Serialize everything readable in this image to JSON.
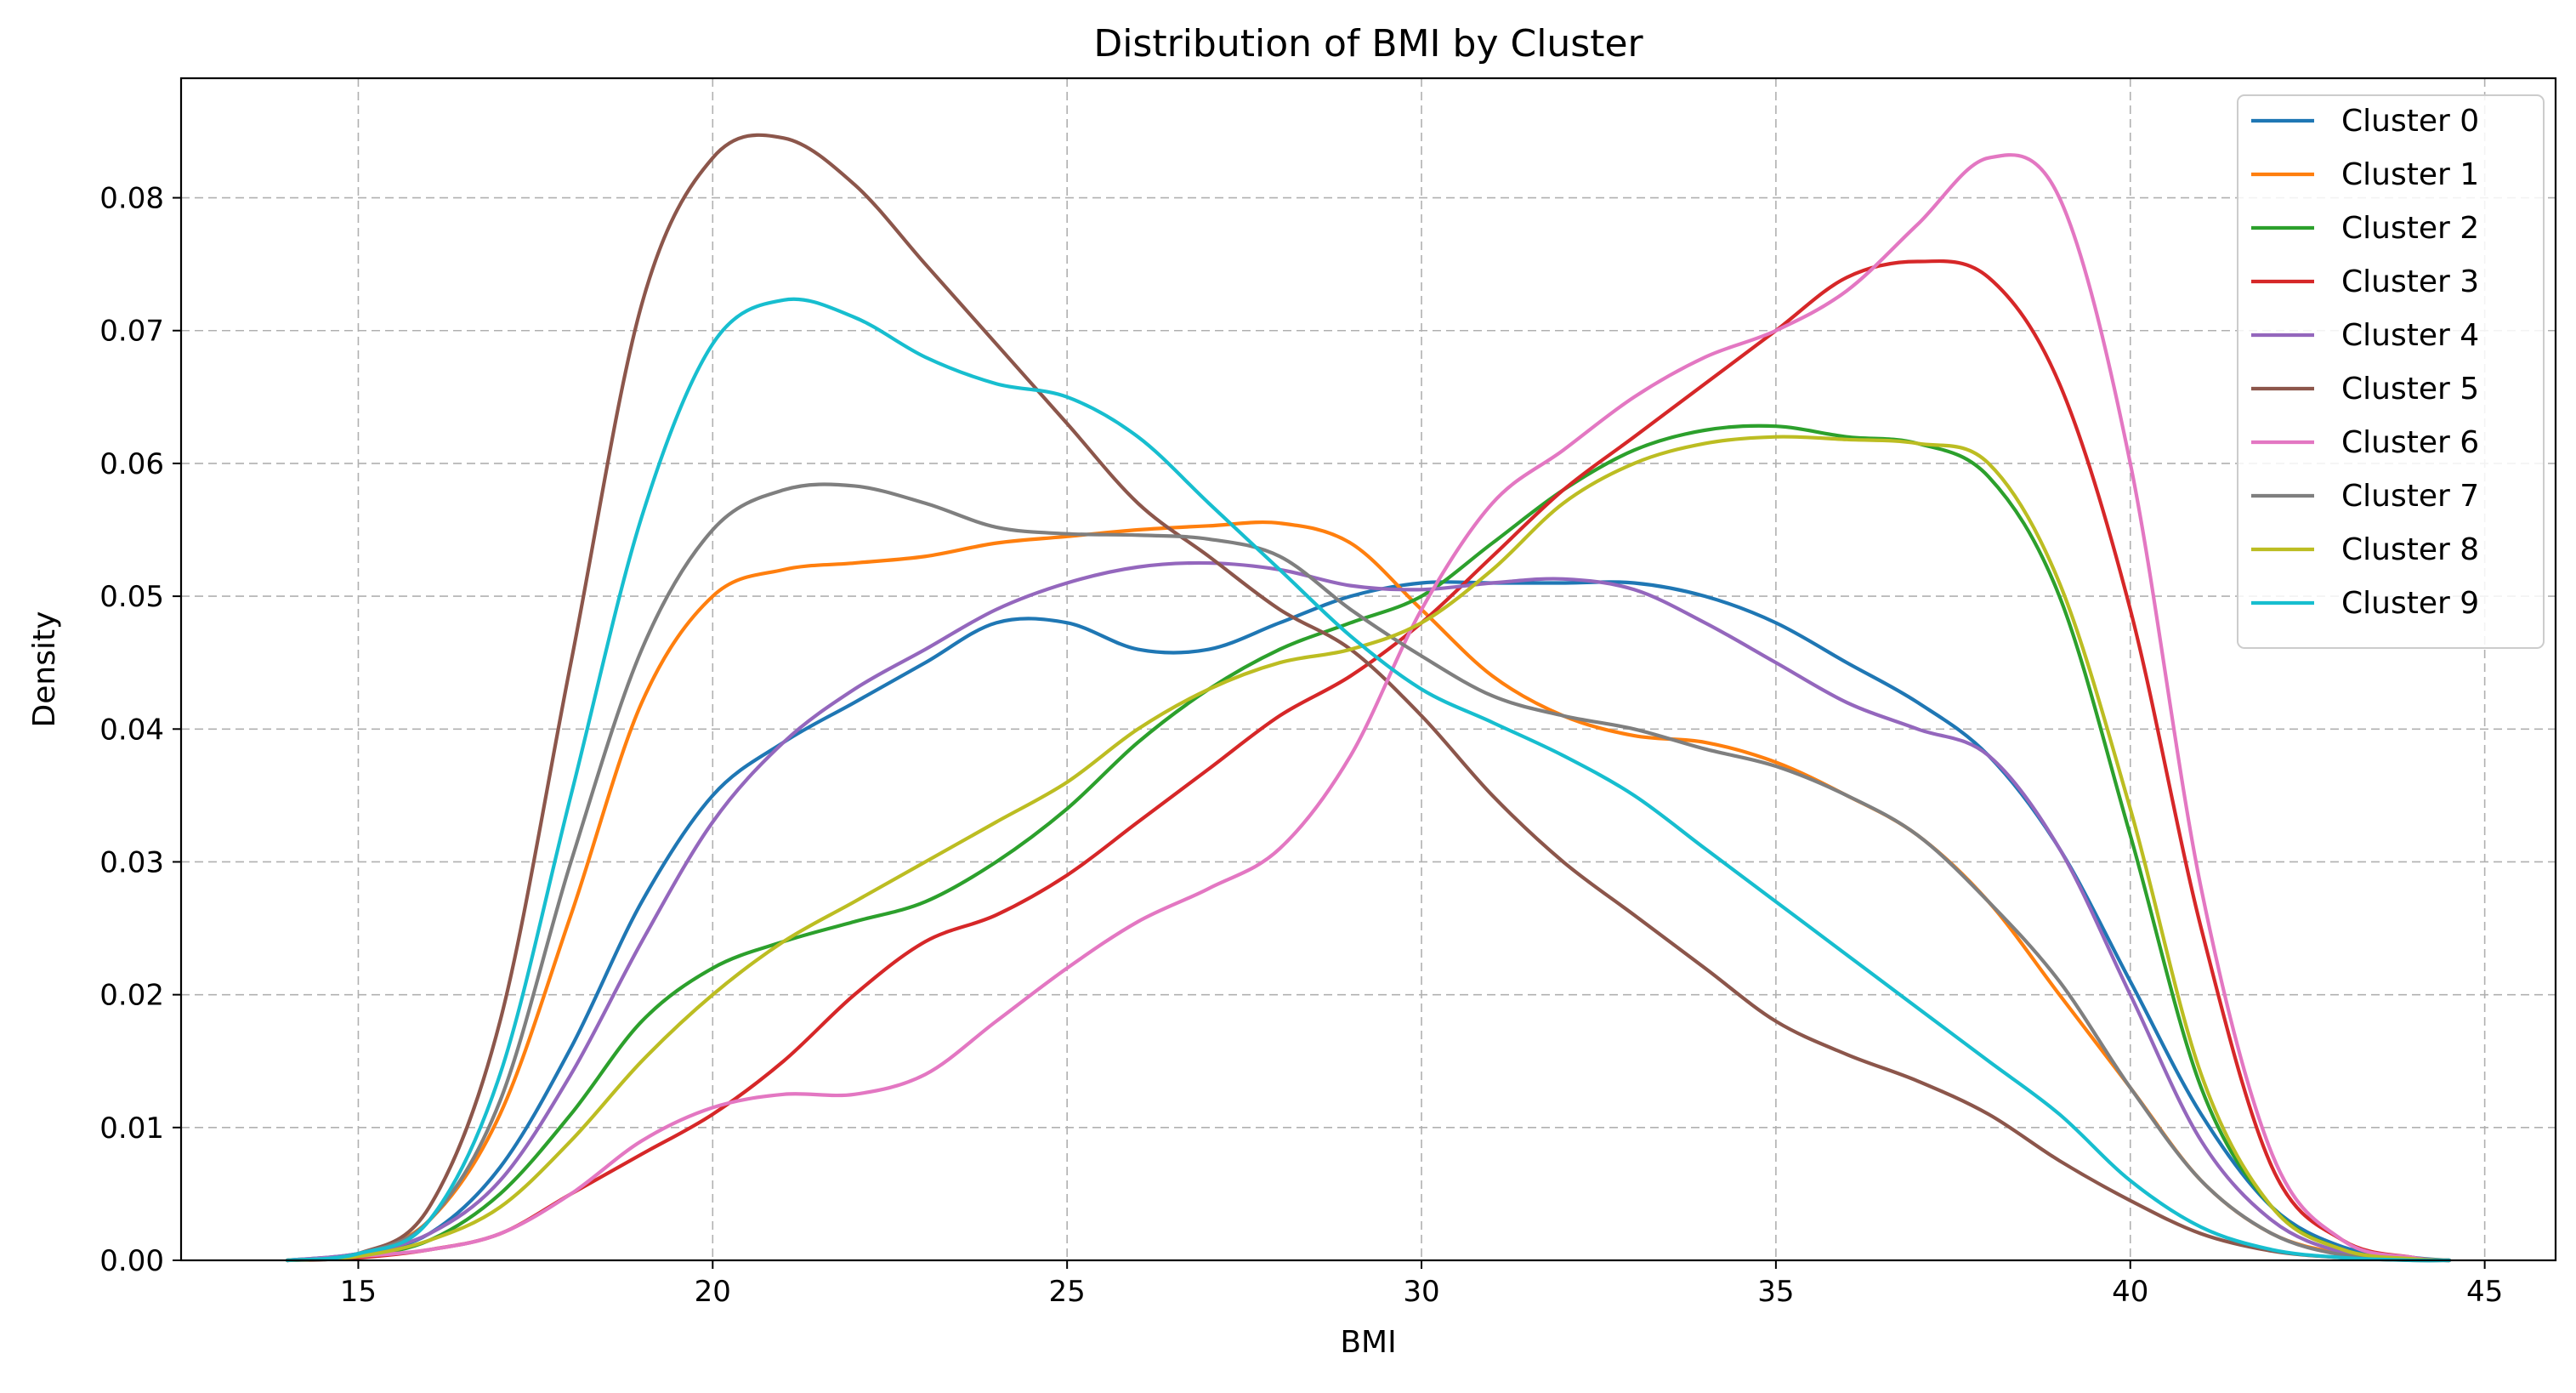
{
  "chart_data": {
    "type": "line",
    "title": "Distribution of BMI by Cluster",
    "xlabel": "BMI",
    "ylabel": "Density",
    "xlim": [
      12.5,
      46
    ],
    "ylim": [
      0,
      0.089
    ],
    "xticks": [
      15,
      20,
      25,
      30,
      35,
      40,
      45
    ],
    "yticks": [
      0.0,
      0.01,
      0.02,
      0.03,
      0.04,
      0.05,
      0.06,
      0.07,
      0.08
    ],
    "xtick_labels": [
      "15",
      "20",
      "25",
      "30",
      "35",
      "40",
      "45"
    ],
    "ytick_labels": [
      "0.00",
      "0.01",
      "0.02",
      "0.03",
      "0.04",
      "0.05",
      "0.06",
      "0.07",
      "0.08"
    ],
    "grid": true,
    "legend_position": "top-right",
    "series": [
      {
        "name": "Cluster 0",
        "color": "#1f77b4",
        "x": [
          14,
          15,
          16,
          17,
          18,
          19,
          20,
          21,
          22,
          23,
          24,
          25,
          26,
          27,
          28,
          29,
          30,
          31,
          32,
          33,
          34,
          35,
          36,
          37,
          38,
          39,
          40,
          41,
          42,
          43,
          44,
          44.5
        ],
        "y": [
          0,
          0.0005,
          0.002,
          0.007,
          0.016,
          0.027,
          0.035,
          0.039,
          0.042,
          0.045,
          0.048,
          0.048,
          0.046,
          0.046,
          0.048,
          0.05,
          0.051,
          0.051,
          0.051,
          0.051,
          0.05,
          0.048,
          0.045,
          0.042,
          0.038,
          0.031,
          0.021,
          0.011,
          0.004,
          0.001,
          0.0002,
          0
        ]
      },
      {
        "name": "Cluster 1",
        "color": "#ff7f0e",
        "x": [
          14,
          15,
          16,
          17,
          18,
          19,
          20,
          21,
          22,
          23,
          24,
          25,
          26,
          27,
          28,
          29,
          30,
          31,
          32,
          33,
          34,
          35,
          36,
          37,
          38,
          39,
          40,
          41,
          42,
          43,
          44,
          44.5
        ],
        "y": [
          0,
          0.0005,
          0.003,
          0.011,
          0.026,
          0.042,
          0.05,
          0.052,
          0.0525,
          0.053,
          0.054,
          0.0545,
          0.055,
          0.0553,
          0.0555,
          0.054,
          0.049,
          0.044,
          0.041,
          0.0395,
          0.039,
          0.0375,
          0.035,
          0.032,
          0.027,
          0.02,
          0.013,
          0.006,
          0.002,
          0.0005,
          0.0001,
          0
        ]
      },
      {
        "name": "Cluster 2",
        "color": "#2ca02c",
        "x": [
          14,
          15,
          16,
          17,
          18,
          19,
          20,
          21,
          22,
          23,
          24,
          25,
          26,
          27,
          28,
          29,
          30,
          31,
          32,
          33,
          34,
          35,
          36,
          37,
          38,
          39,
          40,
          41,
          42,
          43,
          44,
          44.5
        ],
        "y": [
          0,
          0.0003,
          0.0015,
          0.005,
          0.011,
          0.018,
          0.022,
          0.024,
          0.0255,
          0.027,
          0.03,
          0.034,
          0.039,
          0.043,
          0.046,
          0.048,
          0.05,
          0.054,
          0.058,
          0.061,
          0.0625,
          0.0628,
          0.062,
          0.0615,
          0.059,
          0.05,
          0.032,
          0.013,
          0.004,
          0.0008,
          0.0001,
          0
        ]
      },
      {
        "name": "Cluster 3",
        "color": "#d62728",
        "x": [
          14,
          15,
          16,
          17,
          18,
          19,
          20,
          21,
          22,
          23,
          24,
          25,
          26,
          27,
          28,
          29,
          30,
          31,
          32,
          33,
          34,
          35,
          36,
          37,
          38,
          39,
          40,
          41,
          42,
          43,
          44,
          44.5
        ],
        "y": [
          0,
          0.0002,
          0.0008,
          0.002,
          0.005,
          0.008,
          0.011,
          0.015,
          0.02,
          0.024,
          0.026,
          0.029,
          0.033,
          0.037,
          0.041,
          0.044,
          0.048,
          0.053,
          0.058,
          0.062,
          0.066,
          0.07,
          0.074,
          0.0752,
          0.074,
          0.066,
          0.049,
          0.025,
          0.007,
          0.0015,
          0.0002,
          0
        ]
      },
      {
        "name": "Cluster 4",
        "color": "#9467bd",
        "x": [
          14,
          15,
          16,
          17,
          18,
          19,
          20,
          21,
          22,
          23,
          24,
          25,
          26,
          27,
          28,
          29,
          30,
          31,
          32,
          33,
          34,
          35,
          36,
          37,
          38,
          39,
          40,
          41,
          42,
          43,
          44,
          44.5
        ],
        "y": [
          0,
          0.0005,
          0.002,
          0.006,
          0.014,
          0.024,
          0.033,
          0.039,
          0.043,
          0.046,
          0.049,
          0.051,
          0.0522,
          0.0525,
          0.052,
          0.0508,
          0.0505,
          0.051,
          0.0513,
          0.0505,
          0.048,
          0.045,
          0.042,
          0.04,
          0.038,
          0.031,
          0.02,
          0.009,
          0.003,
          0.0006,
          0.0001,
          0
        ]
      },
      {
        "name": "Cluster 5",
        "color": "#8c564b",
        "x": [
          14,
          15,
          16,
          17,
          18,
          19,
          20,
          21,
          22,
          23,
          24,
          25,
          26,
          27,
          28,
          29,
          30,
          31,
          32,
          33,
          34,
          35,
          36,
          37,
          38,
          39,
          40,
          41,
          42,
          43,
          44,
          44.5
        ],
        "y": [
          0,
          0.0005,
          0.004,
          0.018,
          0.045,
          0.072,
          0.083,
          0.0845,
          0.081,
          0.075,
          0.069,
          0.063,
          0.057,
          0.053,
          0.049,
          0.046,
          0.041,
          0.035,
          0.03,
          0.026,
          0.022,
          0.018,
          0.0155,
          0.0135,
          0.011,
          0.0075,
          0.0045,
          0.002,
          0.0007,
          0.0002,
          0,
          0
        ]
      },
      {
        "name": "Cluster 6",
        "color": "#e377c2",
        "x": [
          14,
          15,
          16,
          17,
          18,
          19,
          20,
          21,
          22,
          23,
          24,
          25,
          26,
          27,
          28,
          29,
          30,
          31,
          32,
          33,
          34,
          35,
          36,
          37,
          38,
          39,
          40,
          41,
          42,
          43,
          44,
          44.5
        ],
        "y": [
          0,
          0.0003,
          0.0008,
          0.002,
          0.005,
          0.009,
          0.0115,
          0.0125,
          0.0125,
          0.014,
          0.018,
          0.022,
          0.0255,
          0.028,
          0.031,
          0.038,
          0.049,
          0.057,
          0.061,
          0.065,
          0.068,
          0.07,
          0.073,
          0.078,
          0.083,
          0.08,
          0.06,
          0.028,
          0.008,
          0.0015,
          0.0002,
          0
        ]
      },
      {
        "name": "Cluster 7",
        "color": "#7f7f7f",
        "x": [
          14,
          15,
          16,
          17,
          18,
          19,
          20,
          21,
          22,
          23,
          24,
          25,
          26,
          27,
          28,
          29,
          30,
          31,
          32,
          33,
          34,
          35,
          36,
          37,
          38,
          39,
          40,
          41,
          42,
          43,
          44,
          44.5
        ],
        "y": [
          0,
          0.0005,
          0.003,
          0.012,
          0.03,
          0.046,
          0.055,
          0.058,
          0.0583,
          0.057,
          0.0552,
          0.0547,
          0.0546,
          0.0543,
          0.053,
          0.049,
          0.0455,
          0.0425,
          0.041,
          0.04,
          0.0385,
          0.0372,
          0.035,
          0.032,
          0.027,
          0.021,
          0.013,
          0.006,
          0.002,
          0.0004,
          0.0001,
          0
        ]
      },
      {
        "name": "Cluster 8",
        "color": "#bcbd22",
        "x": [
          14,
          15,
          16,
          17,
          18,
          19,
          20,
          21,
          22,
          23,
          24,
          25,
          26,
          27,
          28,
          29,
          30,
          31,
          32,
          33,
          34,
          35,
          36,
          37,
          38,
          39,
          40,
          41,
          42,
          43,
          44,
          44.5
        ],
        "y": [
          0,
          0.0003,
          0.0015,
          0.004,
          0.009,
          0.015,
          0.02,
          0.024,
          0.027,
          0.03,
          0.033,
          0.036,
          0.04,
          0.043,
          0.045,
          0.046,
          0.048,
          0.052,
          0.057,
          0.06,
          0.0615,
          0.062,
          0.0618,
          0.0615,
          0.06,
          0.051,
          0.034,
          0.014,
          0.004,
          0.0008,
          0.0001,
          0
        ]
      },
      {
        "name": "Cluster 9",
        "color": "#17becf",
        "x": [
          14,
          15,
          16,
          17,
          18,
          19,
          20,
          21,
          22,
          23,
          24,
          25,
          26,
          27,
          28,
          29,
          30,
          31,
          32,
          33,
          34,
          35,
          36,
          37,
          38,
          39,
          40,
          41,
          42,
          43,
          44,
          44.5
        ],
        "y": [
          0,
          0.0005,
          0.003,
          0.014,
          0.035,
          0.056,
          0.069,
          0.0723,
          0.071,
          0.068,
          0.066,
          0.065,
          0.062,
          0.057,
          0.052,
          0.047,
          0.043,
          0.0405,
          0.038,
          0.035,
          0.031,
          0.027,
          0.023,
          0.019,
          0.015,
          0.011,
          0.006,
          0.0025,
          0.0008,
          0.0002,
          0,
          0
        ]
      }
    ]
  }
}
